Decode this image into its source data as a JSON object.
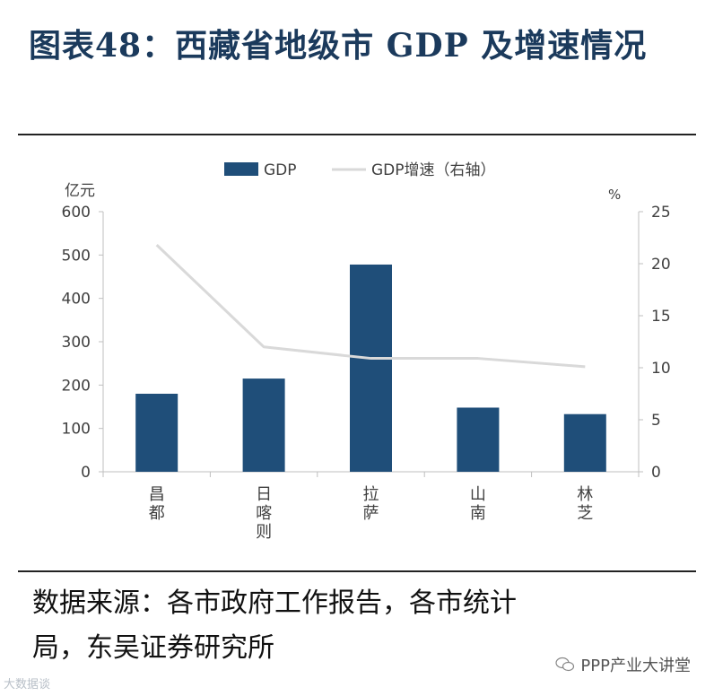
{
  "title": "图表48：西藏省地级市 GDP 及增速情况",
  "chart_data": {
    "type": "bar+line",
    "categories": [
      "昌都",
      "日喀则",
      "拉萨",
      "山南",
      "林芝"
    ],
    "category_labels": [
      [
        "昌",
        "都"
      ],
      [
        "日",
        "喀",
        "则"
      ],
      [
        "拉",
        "萨"
      ],
      [
        "山",
        "南"
      ],
      [
        "林",
        "芝"
      ]
    ],
    "series": [
      {
        "name": "GDP",
        "type": "bar",
        "axis": "left",
        "values": [
          180,
          215,
          478,
          148,
          133
        ],
        "color": "#1f4e79"
      },
      {
        "name": "GDP增速（右轴）",
        "type": "line",
        "axis": "right",
        "values": [
          21.8,
          12.0,
          10.9,
          10.9,
          10.1
        ],
        "color": "#d9d9d9"
      }
    ],
    "y_left": {
      "unit": "亿元",
      "ylim": [
        0,
        600
      ],
      "ticks": [
        "0",
        "100",
        "200",
        "300",
        "400",
        "500",
        "600"
      ]
    },
    "y_right": {
      "unit": "%",
      "ylim": [
        0,
        25
      ],
      "ticks": [
        "0",
        "5",
        "10",
        "15",
        "20",
        "25"
      ]
    },
    "legend_position": "top-center",
    "grid": false
  },
  "source": {
    "line1": "数据来源：各市政府工作报告，各市统计",
    "line2": "局，东吴证券研究所"
  },
  "watermark_right": "PPP产业大讲堂",
  "watermark_left": "大数据谈"
}
